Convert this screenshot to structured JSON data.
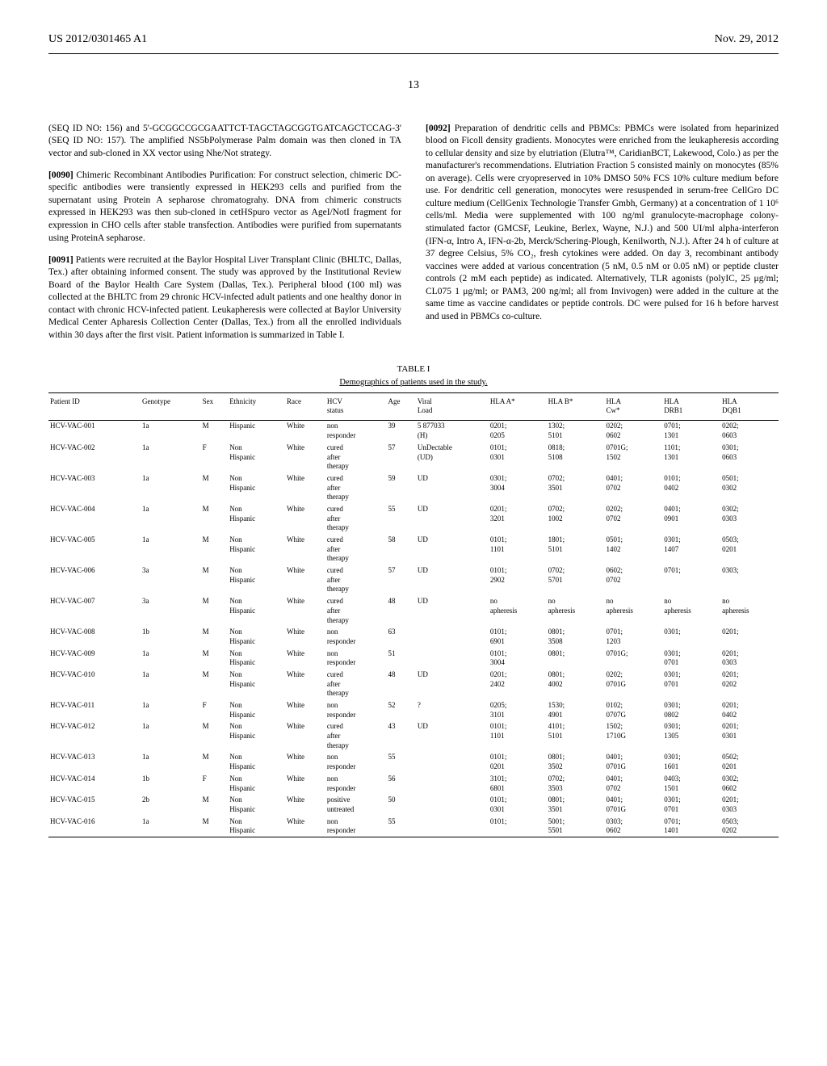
{
  "header": {
    "left": "US 2012/0301465 A1",
    "right": "Nov. 29, 2012"
  },
  "pageNumber": "13",
  "leftCol": {
    "p1_start": "(SEQ ID NO: 156) and 5'-GCGGCCGCGAATTCT-TAGCTAGCGGTGATCAGCTCCAG-3' (SEQ ID NO: 157). The amplified NS5bPolymerase Palm domain was then cloned in TA vector and sub-cloned in XX vector using Nhe/Not strategy.",
    "p2_num": "[0090]",
    "p2_text": "Chimeric Recombinant Antibodies Purification: For construct selection, chimeric DC-specific antibodies were transiently expressed in HEK293 cells and purified from the supernatant using Protein A sepharose chromatograhy. DNA from chimeric constructs expressed in HEK293 was then sub-cloned in cetHSpuro vector as AgeI/NotI fragment for expression in CHO cells after stable transfection. Antibodies were purified from supernatants using ProteinA sepharose.",
    "p3_num": "[0091]",
    "p3_text": "Patients were recruited at the Baylor Hospital Liver Transplant Clinic (BHLTC, Dallas, Tex.) after obtaining informed consent. The study was approved by the Institutional Review Board of the Baylor Health Care System (Dallas, Tex.). Peripheral blood (100 ml) was collected at the BHLTC from 29 chronic HCV-infected adult patients and one healthy donor in contact with chronic HCV-infected patient. Leukapheresis were collected at Baylor University Medical Center Apharesis Collection Center (Dallas, Tex.) from all the enrolled individuals within 30 days after the first visit. Patient information is summarized in Table I."
  },
  "rightCol": {
    "p1_num": "[0092]",
    "p1_text": "Preparation of dendritic cells and PBMCs: PBMCs were isolated from heparinized blood on Ficoll density gradients. Monocytes were enriched from the leukapheresis according to cellular density and size by elutriation (Elutra™, CaridianBCT, Lakewood, Colo.) as per the manufacturer's recommendations. Elutriation Fraction 5 consisted mainly on monocytes (85% on average). Cells were cryopreserved in 10% DMSO 50% FCS 10% culture medium before use. For dendritic cell generation, monocytes were resuspended in serum-free CellGro DC culture medium (CellGenix Technologie Transfer Gmbh, Germany) at a concentration of 1 10⁶ cells/ml. Media were supplemented with 100 ng/ml granulocyte-macrophage colony-stimulated factor (GMCSF, Leukine, Berlex, Wayne, N.J.) and 500 UI/ml alpha-interferon (IFN-α, Intro A, IFN-α-2b, Merck/Schering-Plough, Kenilworth, N.J.). After 24 h of culture at 37 degree Celsius, 5% CO₂, fresh cytokines were added. On day 3, recombinant antibody vaccines were added at various concentration (5 nM, 0.5 nM or 0.05 nM) or peptide cluster controls (2 mM each peptide) as indicated. Alternatively, TLR agonists (polyIC, 25 μg/ml; CL075 1 μg/ml; or PAM3, 200 ng/ml; all from Invivogen) were added in the culture at the same time as vaccine candidates or peptide controls. DC were pulsed for 16 h before harvest and used in PBMCs co-culture."
  },
  "table": {
    "caption": "TABLE I",
    "subtitle": "Demographics of patients used in the study.",
    "columns": [
      "Patient ID",
      "Genotype",
      "Sex",
      "Ethnicity",
      "Race",
      "HCV\nstatus",
      "Age",
      "Viral\nLoad",
      "HLA A*",
      "HLA B*",
      "HLA\nCw*",
      "HLA\nDRB1",
      "HLA\nDQB1"
    ],
    "rows": [
      [
        "HCV-VAC-001",
        "1a",
        "M",
        "Hispanic",
        "White",
        "non\nresponder",
        "39",
        "5 877033\n(H)",
        "0201;\n0205",
        "1302;\n5101",
        "0202;\n0602",
        "0701;\n1301",
        "0202;\n0603"
      ],
      [
        "HCV-VAC-002",
        "1a",
        "F",
        "Non\nHispanic",
        "White",
        "cured\nafter\ntherapy",
        "57",
        "UnDectable\n(UD)",
        "0101;\n0301",
        "0818;\n5108",
        "0701G;\n1502",
        "1101;\n1301",
        "0301;\n0603"
      ],
      [
        "HCV-VAC-003",
        "1a",
        "M",
        "Non\nHispanic",
        "White",
        "cured\nafter\ntherapy",
        "59",
        "UD",
        "0301;\n3004",
        "0702;\n3501",
        "0401;\n0702",
        "0101;\n0402",
        "0501;\n0302"
      ],
      [
        "HCV-VAC-004",
        "1a",
        "M",
        "Non\nHispanic",
        "White",
        "cured\nafter\ntherapy",
        "55",
        "UD",
        "0201;\n3201",
        "0702;\n1002",
        "0202;\n0702",
        "0401;\n0901",
        "0302;\n0303"
      ],
      [
        "HCV-VAC-005",
        "1a",
        "M",
        "Non\nHispanic",
        "White",
        "cured\nafter\ntherapy",
        "58",
        "UD",
        "0101;\n1101",
        "1801;\n5101",
        "0501;\n1402",
        "0301;\n1407",
        "0503;\n0201"
      ],
      [
        "HCV-VAC-006",
        "3a",
        "M",
        "Non\nHispanic",
        "White",
        "cured\nafter\ntherapy",
        "57",
        "UD",
        "0101;\n2902",
        "0702;\n5701",
        "0602;\n0702",
        "0701;",
        "0303;"
      ],
      [
        "HCV-VAC-007",
        "3a",
        "M",
        "Non\nHispanic",
        "White",
        "cured\nafter\ntherapy",
        "48",
        "UD",
        "no\napheresis",
        "no\napheresis",
        "no\napheresis",
        "no\napheresis",
        "no\napheresis"
      ],
      [
        "HCV-VAC-008",
        "1b",
        "M",
        "Non\nHispanic",
        "White",
        "non\nresponder",
        "63",
        "",
        "0101;\n6901",
        "0801;\n3508",
        "0701;\n1203",
        "0301;",
        "0201;"
      ],
      [
        "HCV-VAC-009",
        "1a",
        "M",
        "Non\nHispanic",
        "White",
        "non\nresponder",
        "51",
        "",
        "0101;\n3004",
        "0801;",
        "0701G;",
        "0301;\n0701",
        "0201;\n0303"
      ],
      [
        "HCV-VAC-010",
        "1a",
        "M",
        "Non\nHispanic",
        "White",
        "cured\nafter\ntherapy",
        "48",
        "UD",
        "0201;\n2402",
        "0801;\n4002",
        "0202;\n0701G",
        "0301;\n0701",
        "0201;\n0202"
      ],
      [
        "HCV-VAC-011",
        "1a",
        "F",
        "Non\nHispanic",
        "White",
        "non\nresponder",
        "52",
        "?",
        "0205;\n3101",
        "1530;\n4901",
        "0102;\n0707G",
        "0301;\n0802",
        "0201;\n0402"
      ],
      [
        "HCV-VAC-012",
        "1a",
        "M",
        "Non\nHispanic",
        "White",
        "cured\nafter\ntherapy",
        "43",
        "UD",
        "0101;\n1101",
        "4101;\n5101",
        "1502;\n1710G",
        "0301;\n1305",
        "0201;\n0301"
      ],
      [
        "HCV-VAC-013",
        "1a",
        "M",
        "Non\nHispanic",
        "White",
        "non\nresponder",
        "55",
        "",
        "0101;\n0201",
        "0801;\n3502",
        "0401;\n0701G",
        "0301;\n1601",
        "0502;\n0201"
      ],
      [
        "HCV-VAC-014",
        "1b",
        "F",
        "Non\nHispanic",
        "White",
        "non\nresponder",
        "56",
        "",
        "3101;\n6801",
        "0702;\n3503",
        "0401;\n0702",
        "0403;\n1501",
        "0302;\n0602"
      ],
      [
        "HCV-VAC-015",
        "2b",
        "M",
        "Non\nHispanic",
        "White",
        "positive\nuntreated",
        "50",
        "",
        "0101;\n0301",
        "0801;\n3501",
        "0401;\n0701G",
        "0301;\n0701",
        "0201;\n0303"
      ],
      [
        "HCV-VAC-016",
        "1a",
        "M",
        "Non\nHispanic",
        "White",
        "non\nresponder",
        "55",
        "",
        "0101;",
        "5001;\n5501",
        "0303;\n0602",
        "0701;\n1401",
        "0503;\n0202"
      ]
    ]
  }
}
